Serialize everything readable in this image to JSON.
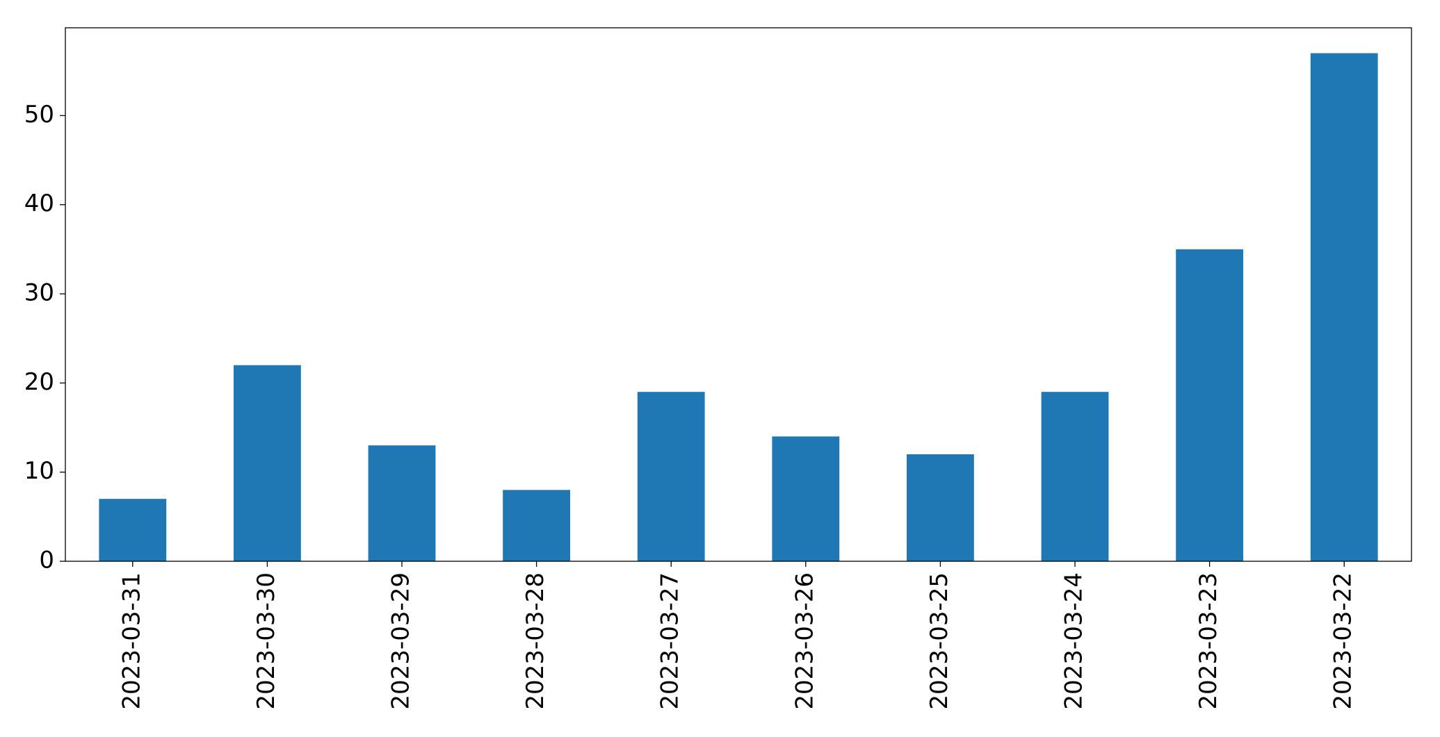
{
  "chart_data": {
    "type": "bar",
    "categories": [
      "2023-03-31",
      "2023-03-30",
      "2023-03-29",
      "2023-03-28",
      "2023-03-27",
      "2023-03-26",
      "2023-03-25",
      "2023-03-24",
      "2023-03-23",
      "2023-03-22"
    ],
    "values": [
      7,
      22,
      13,
      8,
      19,
      14,
      12,
      19,
      35,
      57
    ],
    "color": "#1f77b4",
    "ylim": [
      0,
      59.85
    ],
    "yticks": [
      0,
      10,
      20,
      30,
      40,
      50
    ],
    "grid": false
  }
}
